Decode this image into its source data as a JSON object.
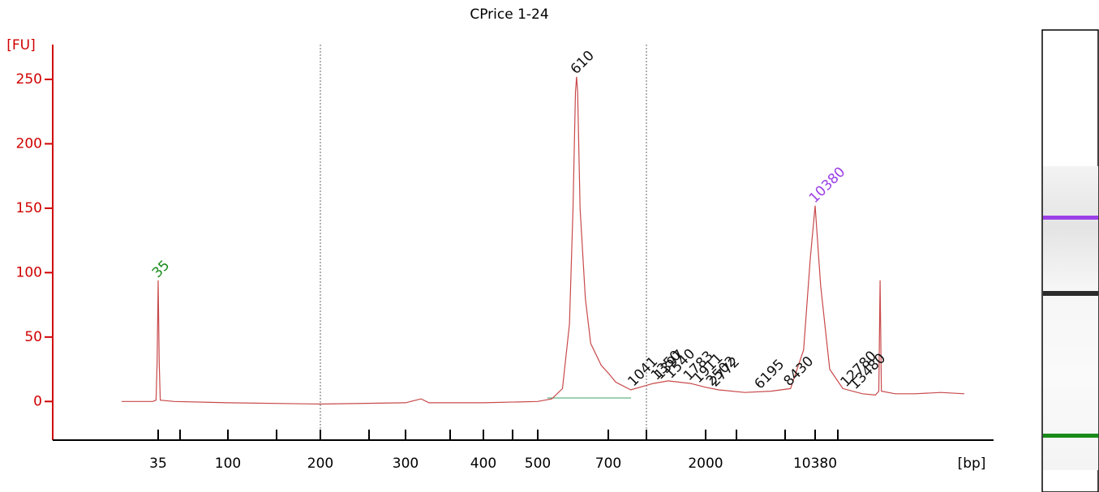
{
  "chart_data": {
    "type": "line",
    "title": "CPrice 1-24",
    "y_label": "[FU]",
    "x_label": "[bp]",
    "x": [
      1,
      20,
      30,
      33,
      34,
      35,
      36,
      37,
      50,
      100,
      200,
      300,
      320,
      330,
      400,
      500,
      540,
      570,
      590,
      600,
      607,
      610,
      613,
      620,
      635,
      650,
      680,
      700,
      800,
      1000,
      1300,
      1500,
      1800,
      2000,
      3000,
      5000,
      7000,
      8500,
      9500,
      10000,
      10380,
      10800,
      11500,
      12500,
      14000,
      15000,
      15250,
      15350,
      15450,
      16500,
      18000,
      20000,
      21800
    ],
    "series": [
      {
        "name": "CPrice 1-24",
        "color": "#c8494a",
        "values": [
          0,
          0,
          0,
          1,
          30,
          94,
          30,
          1,
          0,
          -1,
          -2,
          -1,
          2,
          -1,
          -1,
          0,
          2,
          10,
          60,
          150,
          240,
          252,
          240,
          150,
          80,
          45,
          28,
          22,
          15,
          9,
          14,
          16,
          14,
          11,
          9,
          7,
          8,
          10,
          40,
          110,
          152,
          90,
          25,
          10,
          6,
          5,
          8,
          94,
          8,
          6,
          6,
          7,
          6
        ]
      }
    ],
    "ylim": [
      -30,
      277
    ],
    "yticks": [
      0,
      50,
      100,
      150,
      200,
      250
    ],
    "xticks": [
      35,
      100,
      200,
      300,
      400,
      500,
      700,
      2000,
      10380
    ],
    "peaks": [
      35,
      610,
      10380,
      1041,
      1350,
      1397,
      1540,
      1783,
      1911,
      2502,
      2772,
      6195,
      8430,
      12780,
      13480
    ],
    "peak_colors": [
      "#1a8a1a",
      "#111111",
      "#9b3fe6",
      "#111111",
      "#111111",
      "#111111",
      "#111111",
      "#111111",
      "#111111",
      "#111111",
      "#111111",
      "#111111",
      "#111111",
      "#111111",
      "#111111"
    ]
  }
}
